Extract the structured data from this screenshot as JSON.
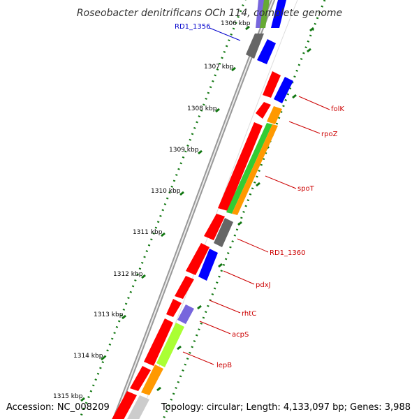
{
  "title": "Roseobacter denitrificans OCh 114, complete genome",
  "accession": "Accession: NC_008209",
  "topology": "Topology: circular; Length: 4,133,097 bp; Genes: 3,988",
  "ticks": [
    "1306 kbp",
    "1307 kbp",
    "1308 kbp",
    "1309 kbp",
    "1310 kbp",
    "1311 kbp",
    "1312 kbp",
    "1313 kbp",
    "1314 kbp",
    "1315 kbp"
  ],
  "gene_labels": [
    {
      "name": "RD1_1356",
      "color": "#0000cc"
    },
    {
      "name": "folK",
      "color": "#cc0000"
    },
    {
      "name": "rpoZ",
      "color": "#cc0000"
    },
    {
      "name": "spoT",
      "color": "#cc0000"
    },
    {
      "name": "RD1_1360",
      "color": "#cc0000"
    },
    {
      "name": "pdxJ",
      "color": "#cc0000"
    },
    {
      "name": "rhtC",
      "color": "#cc0000"
    },
    {
      "name": "acpS",
      "color": "#cc0000"
    },
    {
      "name": "lepB",
      "color": "#cc0000"
    }
  ],
  "colors": {
    "red": "#ff0000",
    "blue": "#0000ff",
    "gray": "#666666",
    "green": "#33cc33",
    "orange": "#ff9900",
    "lavender": "#7766dd",
    "lime": "#aaff33",
    "silver": "#cccccc",
    "backbone": "#888888",
    "tick": "#117711"
  }
}
